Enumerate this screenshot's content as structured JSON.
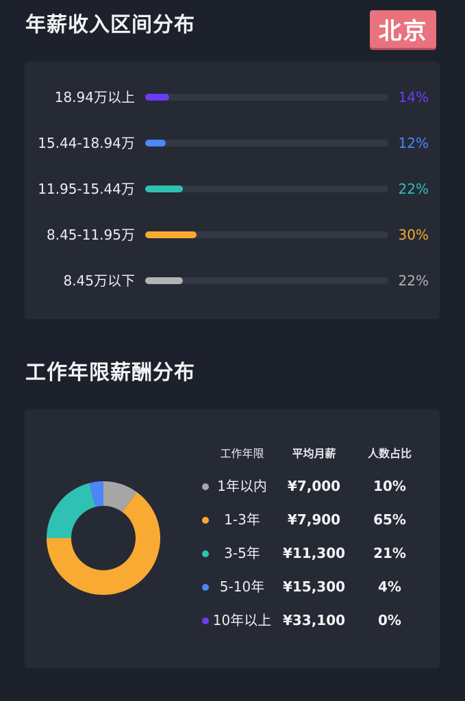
{
  "section1": {
    "title": "年薪收入区间分布",
    "city": "北京"
  },
  "chart_data": [
    {
      "type": "bar",
      "orientation": "horizontal",
      "title": "年薪收入区间分布",
      "categories": [
        "18.94万以上",
        "15.44-18.94万",
        "11.95-15.44万",
        "8.45-11.95万",
        "8.45万以下"
      ],
      "values": [
        14,
        12,
        22,
        30,
        22
      ],
      "value_labels": [
        "14%",
        "12%",
        "22%",
        "30%",
        "22%"
      ],
      "colors": [
        "#6a3cf5",
        "#4d86f7",
        "#2fc2b4",
        "#f9aa33",
        "#b3b3b3"
      ],
      "xlim": [
        0,
        100
      ],
      "unit": "%"
    },
    {
      "type": "pie",
      "style": "donut",
      "title": "工作年限薪酬分布",
      "categories": [
        "1年以内",
        "1-3年",
        "3-5年",
        "5-10年",
        "10年以上"
      ],
      "values": [
        10,
        65,
        21,
        4,
        0
      ],
      "colors": [
        "#a6a6a6",
        "#f9aa33",
        "#2fc2b4",
        "#4d86f7",
        "#6a3cf5"
      ]
    }
  ],
  "section2": {
    "title": "工作年限薪酬分布",
    "headers": {
      "period": "工作年限",
      "salary": "平均月薪",
      "ratio": "人数占比"
    },
    "rows": [
      {
        "period": "1年以内",
        "salary": "¥7,000",
        "ratio": "10%"
      },
      {
        "period": "1-3年",
        "salary": "¥7,900",
        "ratio": "65%"
      },
      {
        "period": "3-5年",
        "salary": "¥11,300",
        "ratio": "21%"
      },
      {
        "period": "5-10年",
        "salary": "¥15,300",
        "ratio": "4%"
      },
      {
        "period": "10年以上",
        "salary": "¥33,100",
        "ratio": "0%"
      }
    ]
  }
}
